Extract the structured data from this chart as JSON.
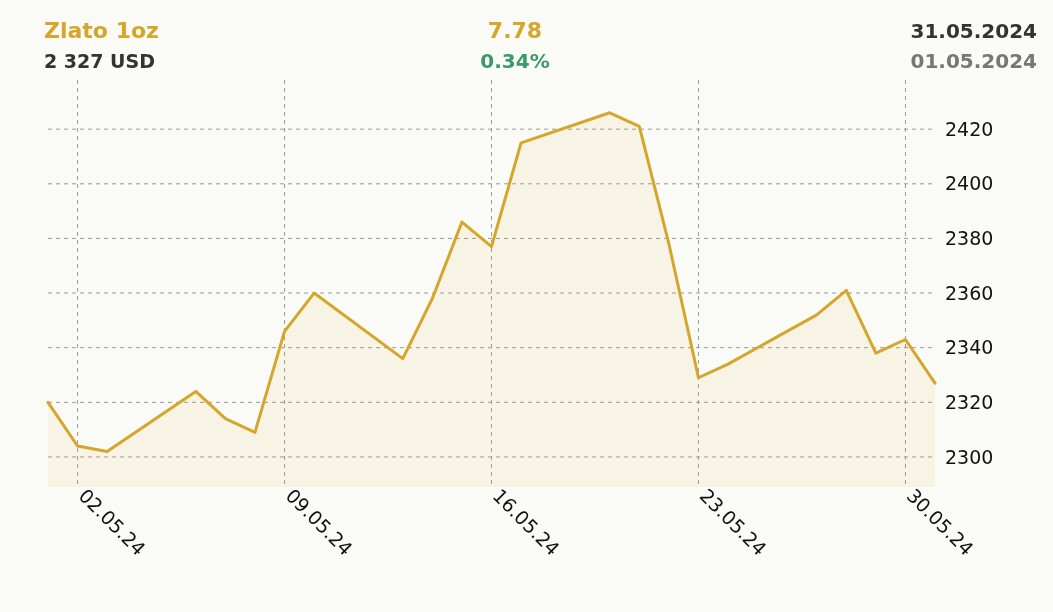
{
  "chart_data": {
    "type": "area",
    "title": "Zlato 1oz",
    "subtitle": "2 327 USD",
    "annotations": [
      "7.78",
      "0.34%",
      "31.05.2024",
      "01.05.2024"
    ],
    "x": [
      "2024-05-01",
      "2024-05-02",
      "2024-05-03",
      "2024-05-06",
      "2024-05-07",
      "2024-05-08",
      "2024-05-09",
      "2024-05-10",
      "2024-05-13",
      "2024-05-14",
      "2024-05-15",
      "2024-05-16",
      "2024-05-17",
      "2024-05-20",
      "2024-05-21",
      "2024-05-22",
      "2024-05-23",
      "2024-05-24",
      "2024-05-27",
      "2024-05-28",
      "2024-05-29",
      "2024-05-30",
      "2024-05-31"
    ],
    "series": [
      {
        "color": "#d4a72c",
        "values": [
          2320,
          2304,
          2302,
          2324,
          2314,
          2309,
          2346,
          2360,
          2336,
          2358,
          2386,
          2377,
          2415,
          2426,
          2421,
          2378,
          2329,
          2334,
          2352,
          2361,
          2338,
          2343,
          2327
        ]
      }
    ],
    "xlim": [
      "2024-05-01",
      "2024-05-31"
    ],
    "xticks": [
      {
        "value": "2024-05-02",
        "label": "02.05.24"
      },
      {
        "value": "2024-05-09",
        "label": "09.05.24"
      },
      {
        "value": "2024-05-16",
        "label": "16.05.24"
      },
      {
        "value": "2024-05-23",
        "label": "23.05.24"
      },
      {
        "value": "2024-05-30",
        "label": "30.05.24"
      }
    ],
    "ylim": [
      2289,
      2438
    ],
    "yticks": [
      2300,
      2320,
      2340,
      2360,
      2380,
      2400,
      2420
    ],
    "grid": true
  }
}
